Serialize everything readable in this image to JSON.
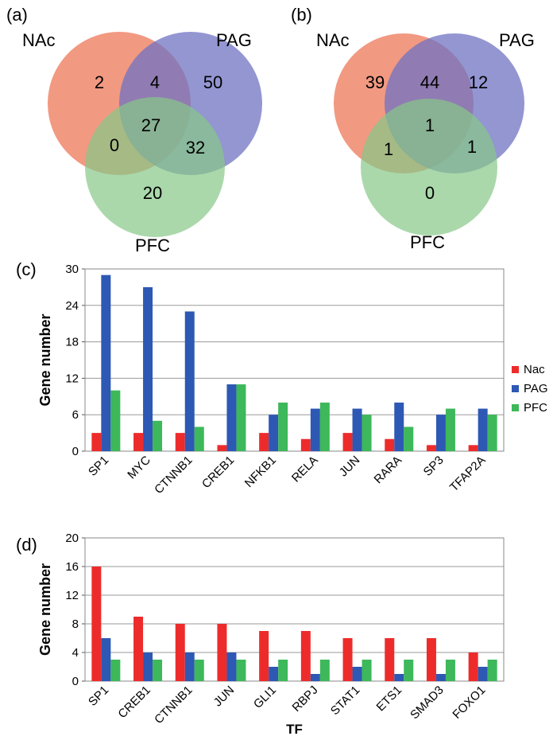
{
  "panels": {
    "a": {
      "label": "(a)",
      "sets": [
        "NAc",
        "PAG",
        "PFC"
      ],
      "regions": {
        "only_1": "2",
        "only_2": "50",
        "only_3": "20",
        "int_12": "4",
        "int_13": "0",
        "int_23": "32",
        "int_123": "27"
      }
    },
    "b": {
      "label": "(b)",
      "sets": [
        "NAc",
        "PAG",
        "PFC"
      ],
      "regions": {
        "only_1": "39",
        "only_2": "12",
        "only_3": "0",
        "int_12": "44",
        "int_13": "1",
        "int_23": "1",
        "int_123": "1"
      }
    },
    "c": {
      "label": "(c)"
    },
    "d": {
      "label": "(d)"
    }
  },
  "venn_colors": {
    "set1": "#ef7f63",
    "set2": "#7b80c8",
    "set3": "#8fcc90"
  },
  "chart_data": [
    {
      "type": "bar",
      "panel": "c",
      "categories": [
        "SP1",
        "MYC",
        "CTNNB1",
        "CREB1",
        "NFKB1",
        "RELA",
        "JUN",
        "RARA",
        "SP3",
        "TFAP2A"
      ],
      "series": [
        {
          "name": "Nac",
          "color": "#ee2b2b",
          "values": [
            3,
            3,
            3,
            1,
            3,
            2,
            3,
            2,
            1,
            1
          ]
        },
        {
          "name": "PAG",
          "color": "#2d58b4",
          "values": [
            29,
            27,
            23,
            11,
            6,
            7,
            7,
            8,
            6,
            7
          ]
        },
        {
          "name": "PFC",
          "color": "#3db85a",
          "values": [
            10,
            5,
            4,
            11,
            8,
            8,
            6,
            4,
            7,
            6
          ]
        }
      ],
      "xlabel": "",
      "ylabel": "Gene number",
      "ylim": [
        0,
        30
      ],
      "yticks": [
        0,
        6,
        12,
        18,
        24,
        30
      ],
      "grid": true,
      "legend": "right"
    },
    {
      "type": "bar",
      "panel": "d",
      "categories": [
        "SP1",
        "CREB1",
        "CTNNB1",
        "JUN",
        "GLI1",
        "RBPJ",
        "STAT1",
        "ETS1",
        "SMAD3",
        "FOXO1"
      ],
      "series": [
        {
          "name": "Nac",
          "color": "#ee2b2b",
          "values": [
            16,
            9,
            8,
            8,
            7,
            7,
            6,
            6,
            6,
            4
          ]
        },
        {
          "name": "PAG",
          "color": "#2d58b4",
          "values": [
            6,
            4,
            4,
            4,
            2,
            1,
            2,
            1,
            1,
            2
          ]
        },
        {
          "name": "PFC",
          "color": "#3db85a",
          "values": [
            3,
            3,
            3,
            3,
            3,
            3,
            3,
            3,
            3,
            3
          ]
        }
      ],
      "xlabel": "TF",
      "ylabel": "Gene number",
      "ylim": [
        0,
        20
      ],
      "yticks": [
        0,
        4,
        8,
        12,
        16,
        20
      ],
      "grid": true
    }
  ]
}
